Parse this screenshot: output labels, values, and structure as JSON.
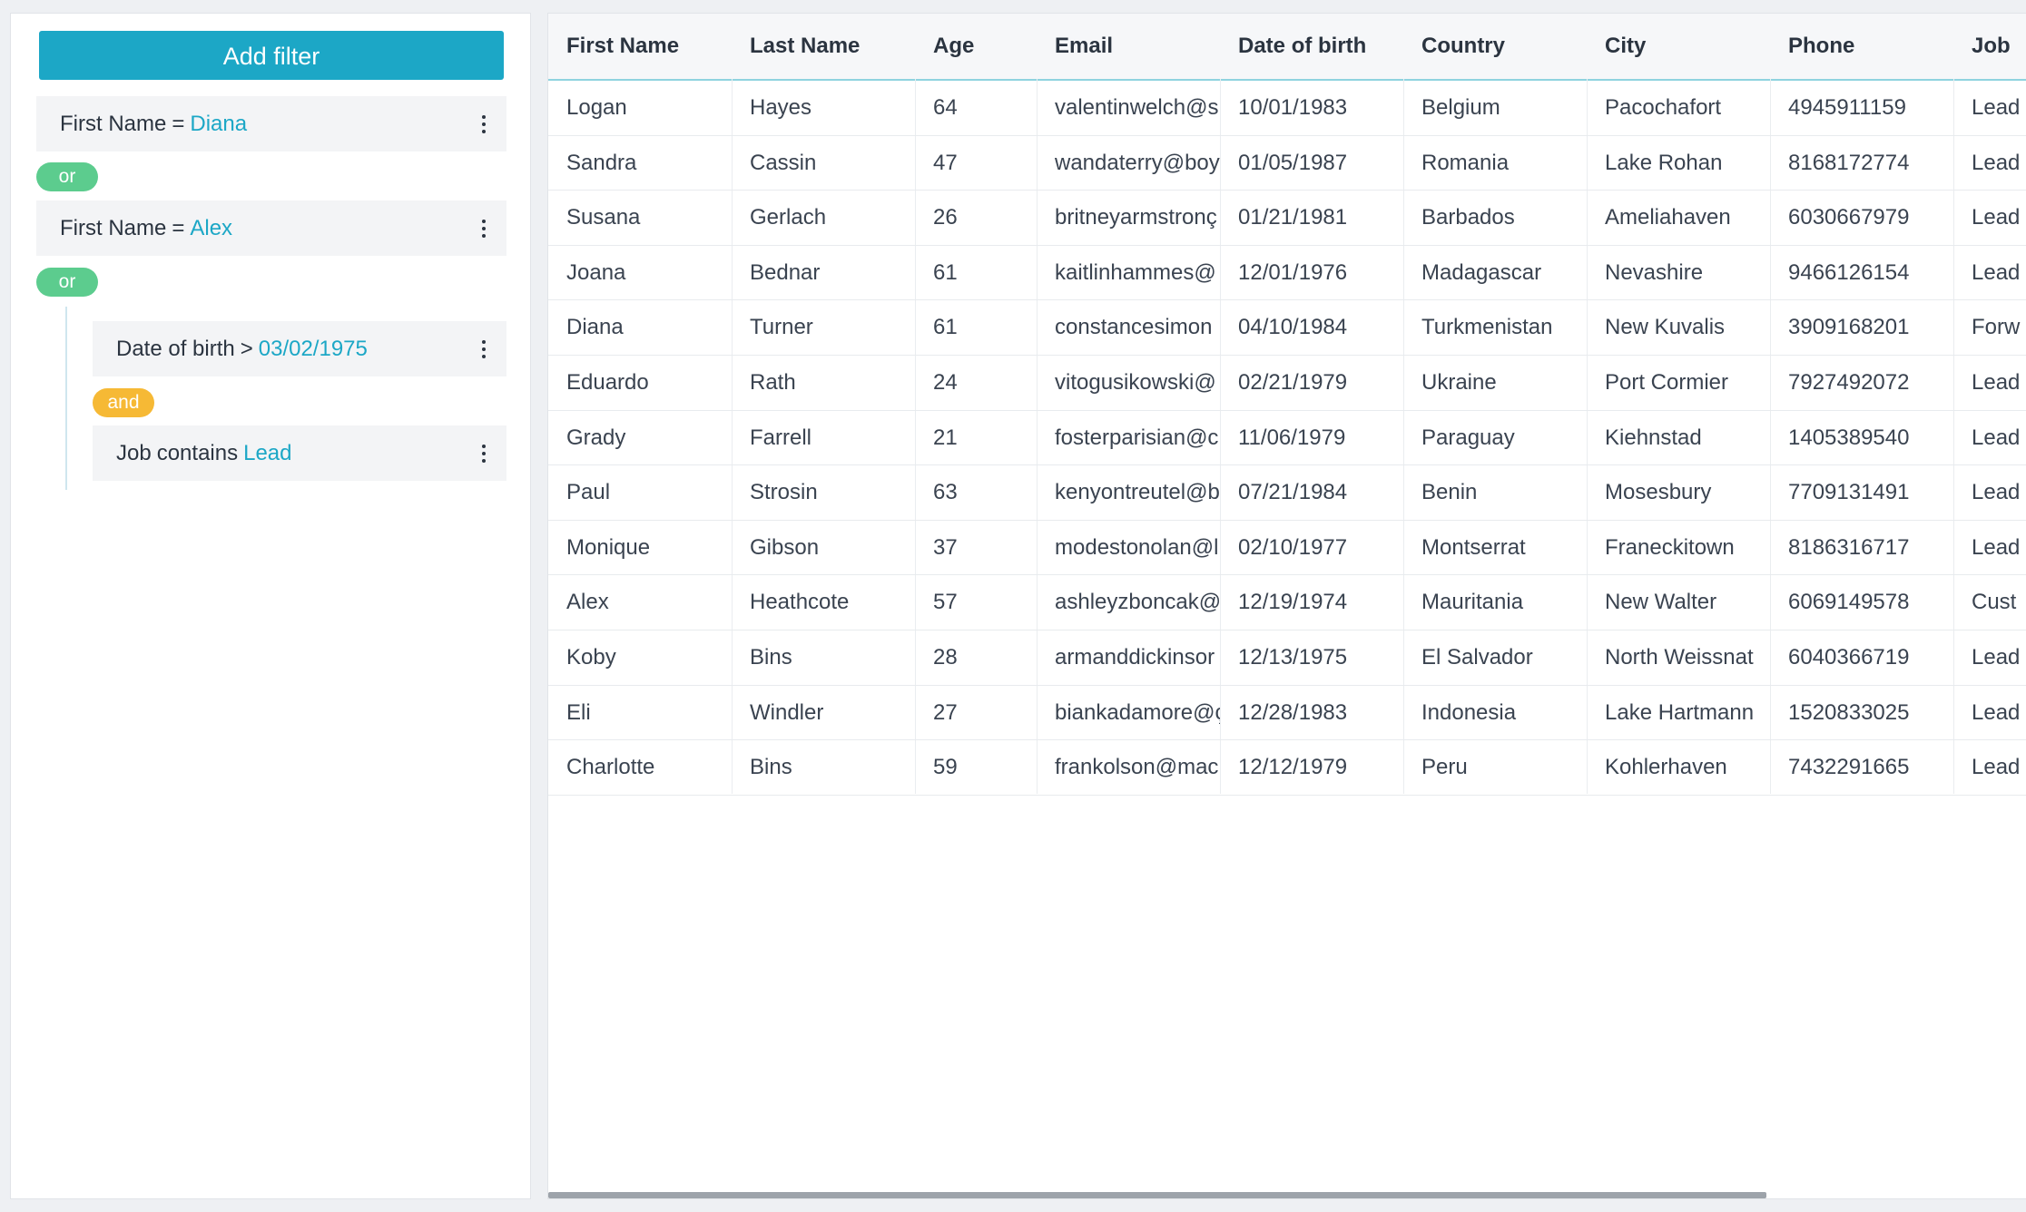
{
  "filter": {
    "add_label": "Add filter",
    "rules": [
      {
        "field": "First Name",
        "op": "=",
        "value": "Diana"
      },
      {
        "field": "First Name",
        "op": "=",
        "value": "Alex"
      },
      {
        "field": "Date of birth",
        "op": ">",
        "value": "03/02/1975"
      },
      {
        "field": "Job",
        "op": "contains",
        "value": "Lead"
      }
    ],
    "connectors": [
      "or",
      "or",
      "and"
    ]
  },
  "table": {
    "columns": [
      "First Name",
      "Last Name",
      "Age",
      "Email",
      "Date of birth",
      "Country",
      "City",
      "Phone",
      "Job"
    ],
    "rows": [
      [
        "Logan",
        "Hayes",
        "64",
        "valentinwelch@s",
        "10/01/1983",
        "Belgium",
        "Pacochafort",
        "4945911159",
        "Lead"
      ],
      [
        "Sandra",
        "Cassin",
        "47",
        "wandaterry@boy",
        "01/05/1987",
        "Romania",
        "Lake Rohan",
        "8168172774",
        "Lead"
      ],
      [
        "Susana",
        "Gerlach",
        "26",
        "britneyarmstronç",
        "01/21/1981",
        "Barbados",
        "Ameliahaven",
        "6030667979",
        "Lead"
      ],
      [
        "Joana",
        "Bednar",
        "61",
        "kaitlinhammes@",
        "12/01/1976",
        "Madagascar",
        "Nevashire",
        "9466126154",
        "Lead"
      ],
      [
        "Diana",
        "Turner",
        "61",
        "constancesimon",
        "04/10/1984",
        "Turkmenistan",
        "New Kuvalis",
        "3909168201",
        "Forw"
      ],
      [
        "Eduardo",
        "Rath",
        "24",
        "vitogusikowski@",
        "02/21/1979",
        "Ukraine",
        "Port Cormier",
        "7927492072",
        "Lead"
      ],
      [
        "Grady",
        "Farrell",
        "21",
        "fosterparisian@c",
        "11/06/1979",
        "Paraguay",
        "Kiehnstad",
        "1405389540",
        "Lead"
      ],
      [
        "Paul",
        "Strosin",
        "63",
        "kenyontreutel@b",
        "07/21/1984",
        "Benin",
        "Mosesbury",
        "7709131491",
        "Lead"
      ],
      [
        "Monique",
        "Gibson",
        "37",
        "modestonolan@l",
        "02/10/1977",
        "Montserrat",
        "Franeckitown",
        "8186316717",
        "Lead"
      ],
      [
        "Alex",
        "Heathcote",
        "57",
        "ashleyzboncak@",
        "12/19/1974",
        "Mauritania",
        "New Walter",
        "6069149578",
        "Cust"
      ],
      [
        "Koby",
        "Bins",
        "28",
        "armanddickinsor",
        "12/13/1975",
        "El Salvador",
        "North Weissnat",
        "6040366719",
        "Lead"
      ],
      [
        "Eli",
        "Windler",
        "27",
        "biankadamore@ç",
        "12/28/1983",
        "Indonesia",
        "Lake Hartmann",
        "1520833025",
        "Lead"
      ],
      [
        "Charlotte",
        "Bins",
        "59",
        "frankolson@mac",
        "12/12/1979",
        "Peru",
        "Kohlerhaven",
        "7432291665",
        "Lead"
      ]
    ]
  },
  "colors": {
    "accent": "#1ca7c6",
    "or": "#5ccc8e",
    "and": "#f6b935"
  }
}
